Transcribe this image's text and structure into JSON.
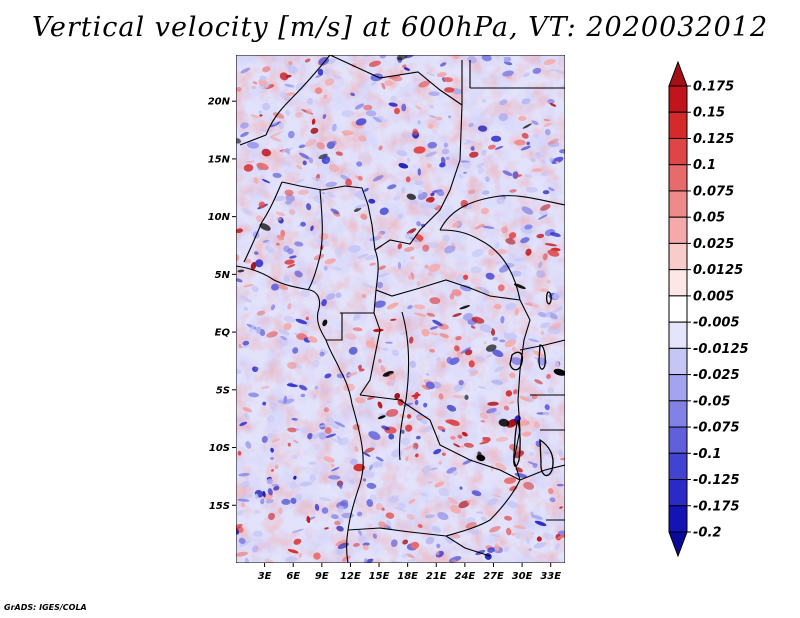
{
  "chart_data": {
    "type": "heatmap",
    "title": "Vertical velocity [m/s] at 600hPa, VT: 2020032012",
    "variable": "Vertical velocity",
    "units": "m/s",
    "level": "600hPa",
    "valid_time": "2020032012",
    "x_range": [
      0,
      34.5
    ],
    "y_range": [
      -20,
      24
    ],
    "x_ticks": [
      3,
      6,
      9,
      12,
      15,
      18,
      21,
      24,
      27,
      30,
      33
    ],
    "x_tick_labels": [
      "3E",
      "6E",
      "9E",
      "12E",
      "15E",
      "18E",
      "21E",
      "24E",
      "27E",
      "30E",
      "33E"
    ],
    "y_ticks": [
      20,
      15,
      10,
      5,
      0,
      -5,
      -10,
      -15
    ],
    "y_tick_labels": [
      "20N",
      "15N",
      "10N",
      "5N",
      "EQ",
      "5S",
      "10S",
      "15S"
    ],
    "colorbar": {
      "levels": [
        "0.175",
        "0.15",
        "0.125",
        "0.1",
        "0.075",
        "0.05",
        "0.025",
        "0.0125",
        "0.005",
        "-0.005",
        "-0.0125",
        "-0.025",
        "-0.05",
        "-0.075",
        "-0.1",
        "-0.125",
        "-0.175",
        "-0.2"
      ],
      "colors": [
        "#a50f15",
        "#c0161b",
        "#d42a2a",
        "#e04545",
        "#e86a6a",
        "#ee8a8a",
        "#f4aaaa",
        "#f9cccc",
        "#fde6e6",
        "#ffffff",
        "#e4e4fb",
        "#c6c6f5",
        "#a4a4ee",
        "#8282e6",
        "#6060dc",
        "#4343d2",
        "#2a2ac8",
        "#1414b4",
        "#0a0a9a"
      ]
    }
  },
  "footer": "GrADS: IGES/COLA"
}
